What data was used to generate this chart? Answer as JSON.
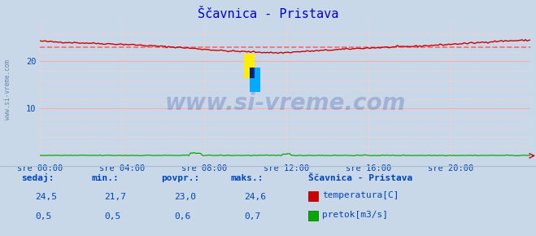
{
  "title": "Ščavnica - Pristava",
  "title_color": "#0000cc",
  "bg_color": "#c8d8e8",
  "plot_bg_color": "#c8d8e8",
  "grid_color_major": "#ffaaaa",
  "grid_color_minor": "#ffcccc",
  "n_points": 288,
  "temp_min": 21.7,
  "temp_max": 24.6,
  "temp_avg": 23.0,
  "temp_current": 24.5,
  "flow_min": 0.5,
  "flow_max": 0.7,
  "flow_avg": 0.6,
  "flow_current": 0.5,
  "temp_color": "#cc0000",
  "flow_color": "#00aa00",
  "avg_line_color": "#ff6666",
  "x_tick_labels": [
    "sre 00:00",
    "sre 04:00",
    "sre 08:00",
    "sre 12:00",
    "sre 16:00",
    "sre 20:00"
  ],
  "x_tick_positions": [
    0,
    48,
    96,
    144,
    192,
    240
  ],
  "y_ticks_major": [
    10,
    20
  ],
  "y_lim": [
    -1,
    28
  ],
  "watermark": "www.si-vreme.com",
  "watermark_color": "#3355aa",
  "station_name": "Ščavnica - Pristava",
  "label_temp": "temperatura[C]",
  "label_flow": "pretok[m3/s]",
  "legend_color": "#0044bb",
  "table_headers": [
    "sedaj:",
    "min.:",
    "povpr.:",
    "maks.:"
  ],
  "table_row1": [
    "24,5",
    "21,7",
    "23,0",
    "24,6"
  ],
  "table_row2": [
    "0,5",
    "0,5",
    "0,6",
    "0,7"
  ],
  "sidebar_text": "www.si-vreme.com",
  "sidebar_color": "#6688aa"
}
